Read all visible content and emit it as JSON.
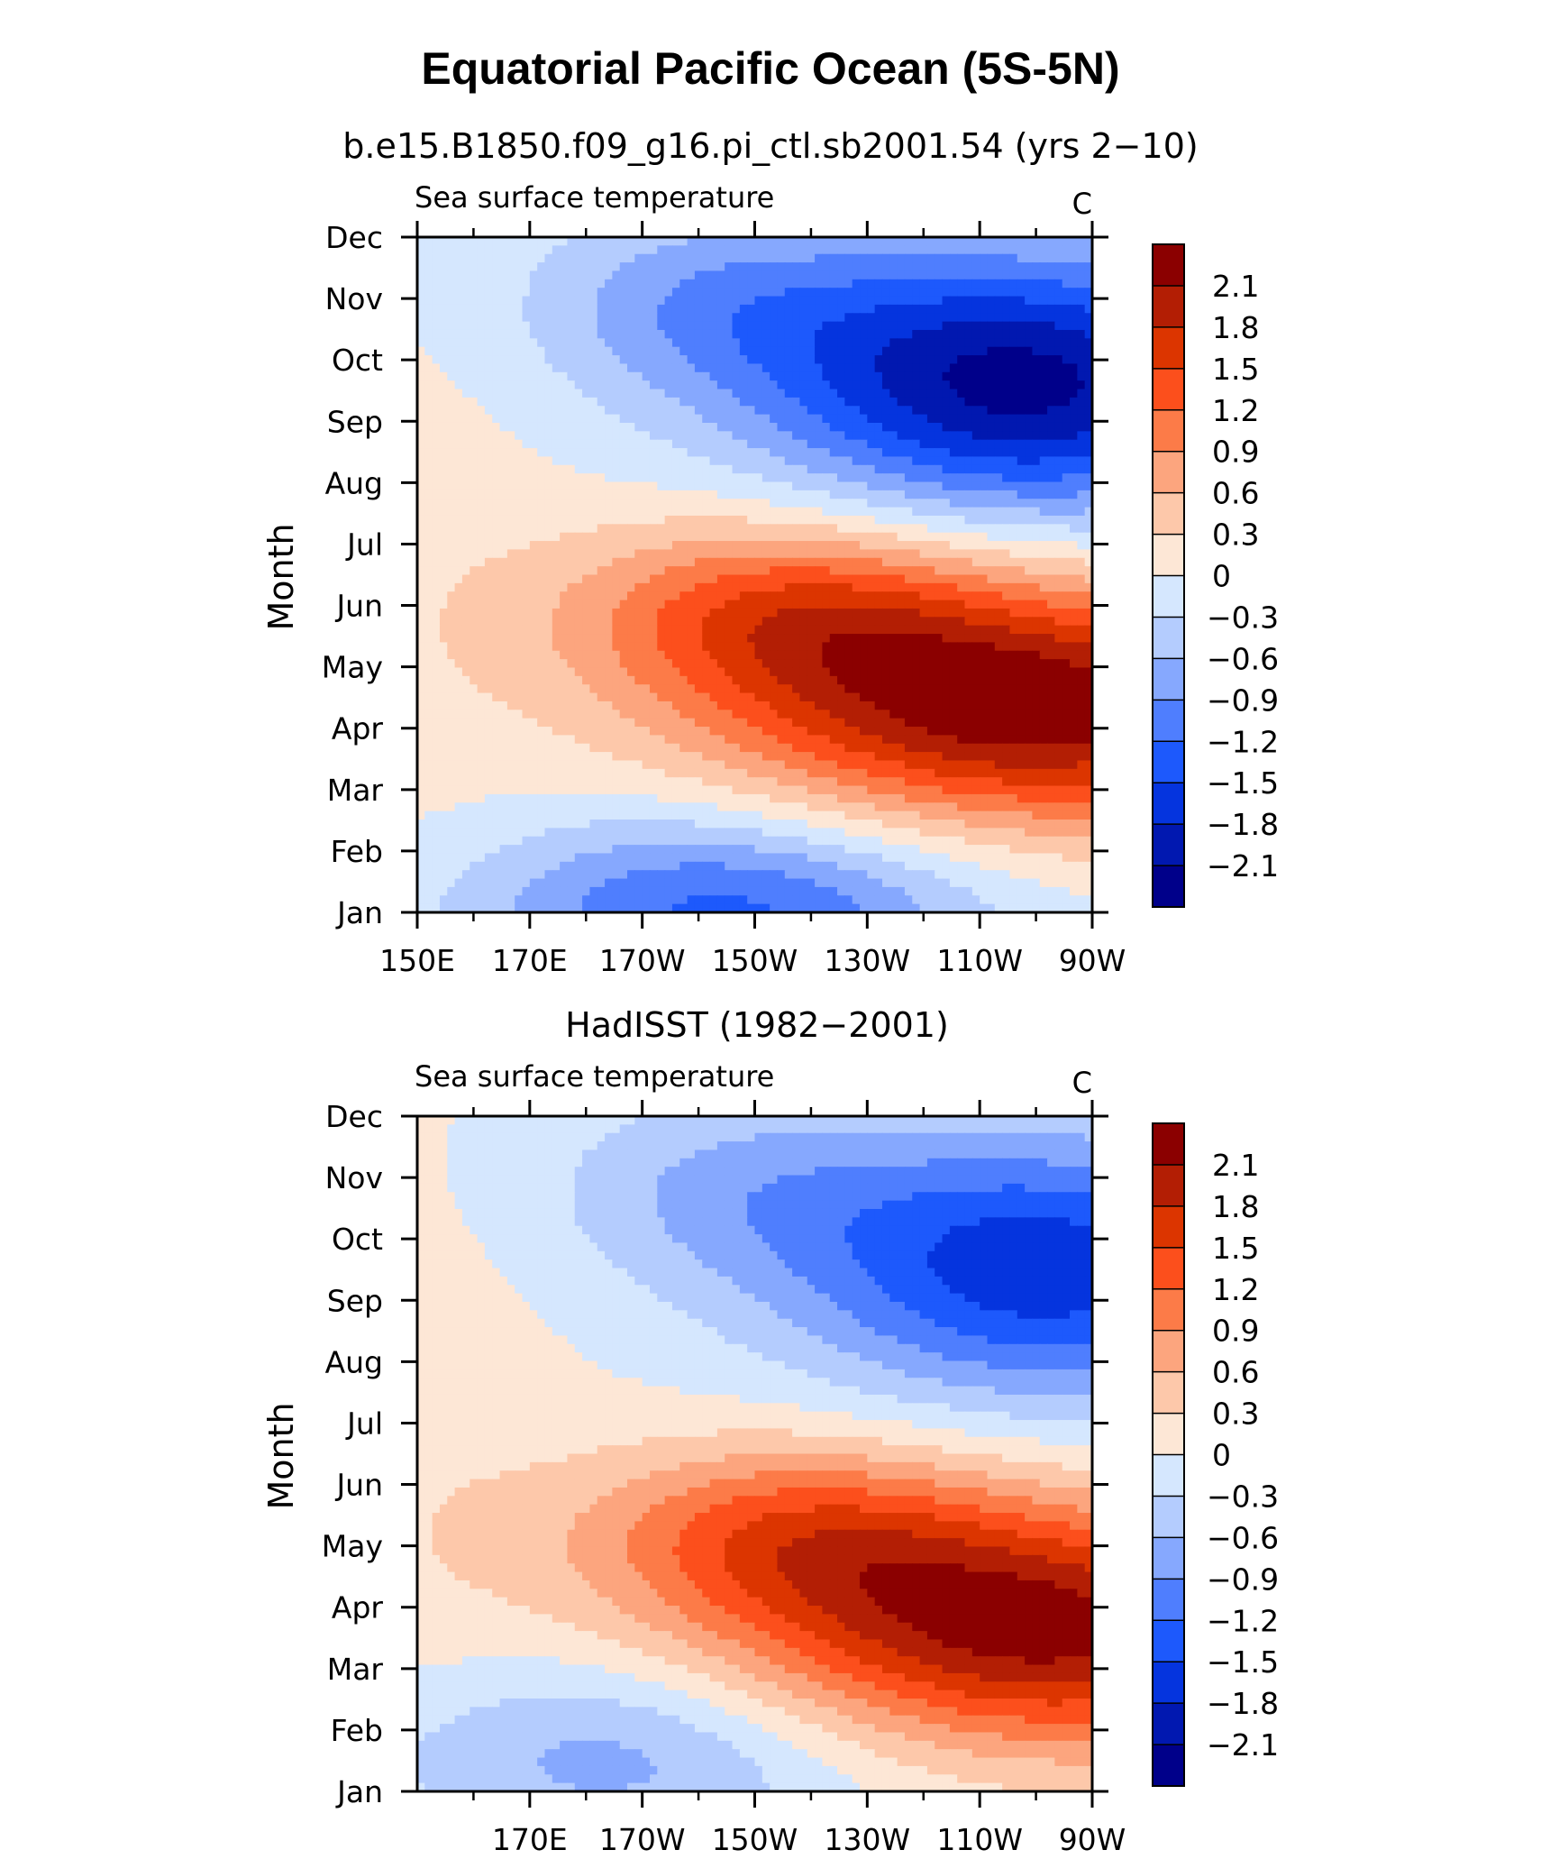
{
  "figure": {
    "title": "Equatorial Pacific Ocean (5S-5N)"
  },
  "colorbar": {
    "levels": [
      "2.1",
      "1.8",
      "1.5",
      "1.2",
      "0.9",
      "0.6",
      "0.3",
      "0",
      "−0.3",
      "−0.6",
      "−0.9",
      "−1.2",
      "−1.5",
      "−1.8",
      "−2.1"
    ],
    "colors": [
      "#8b0000",
      "#b31e04",
      "#dc3500",
      "#fc4f1c",
      "#fc7b48",
      "#fca57e",
      "#fdc8aa",
      "#fde7d6",
      "#d5e7fe",
      "#b4ccfe",
      "#86a8fe",
      "#4f7efe",
      "#1d59fc",
      "#0534de",
      "#0118b0",
      "#00008a"
    ]
  },
  "chart_data": [
    {
      "type": "heatmap",
      "title": "b.e15.B1850.f09_g16.pi_ctl.sb2001.54 (yrs 2−10)",
      "left_string": "Sea surface temperature",
      "right_string": "C",
      "ylabel": "Month",
      "x_tick_labels": [
        "150E",
        "170E",
        "170W",
        "150W",
        "130W",
        "110W",
        "90W"
      ],
      "x_tick_values": [
        150,
        170,
        190,
        210,
        230,
        250,
        270
      ],
      "xlim": [
        150,
        270
      ],
      "y_tick_labels": [
        "Jan",
        "Feb",
        "Mar",
        "Apr",
        "May",
        "Jun",
        "Jul",
        "Aug",
        "Sep",
        "Oct",
        "Nov",
        "Dec"
      ],
      "ylim": [
        1,
        12
      ],
      "levels": [
        -2.1,
        -1.8,
        -1.5,
        -1.2,
        -0.9,
        -0.6,
        -0.3,
        0,
        0.3,
        0.6,
        0.9,
        1.2,
        1.5,
        1.8,
        2.1
      ],
      "units": "C",
      "field_params": {
        "warm_peak_value": 2.3,
        "warm_peak_lon": 260,
        "warm_peak_month": 4.3,
        "cold_peak_value": -2.2,
        "cold_peak_lon": 258,
        "cold_peak_month": 9.6,
        "winter_cold_value": -1.3,
        "winter_cold_lon": 205,
        "winter_cold_month": 1.0,
        "west_warm_value": 0.15
      }
    },
    {
      "type": "heatmap",
      "title": "HadISST (1982−2001)",
      "left_string": "Sea surface temperature",
      "right_string": "C",
      "ylabel": "Month",
      "x_tick_labels": [
        "170E",
        "170W",
        "150W",
        "130W",
        "110W",
        "90W"
      ],
      "x_tick_values": [
        170,
        190,
        210,
        230,
        250,
        270
      ],
      "xlim": [
        150,
        270
      ],
      "y_tick_labels": [
        "Jan",
        "Feb",
        "Mar",
        "Apr",
        "May",
        "Jun",
        "Jul",
        "Aug",
        "Sep",
        "Oct",
        "Nov",
        "Dec"
      ],
      "ylim": [
        1,
        12
      ],
      "levels": [
        -2.1,
        -1.8,
        -1.5,
        -1.2,
        -0.9,
        -0.6,
        -0.3,
        0,
        0.3,
        0.6,
        0.9,
        1.2,
        1.5,
        1.8,
        2.1
      ],
      "units": "C",
      "field_params": {
        "warm_peak_value": 2.2,
        "warm_peak_lon": 262,
        "warm_peak_month": 3.6,
        "cold_peak_value": -1.7,
        "cold_peak_lon": 262,
        "cold_peak_month": 9.5,
        "winter_cold_value": -0.75,
        "winter_cold_lon": 185,
        "winter_cold_month": 1.6,
        "west_warm_value": 0.2
      }
    }
  ]
}
